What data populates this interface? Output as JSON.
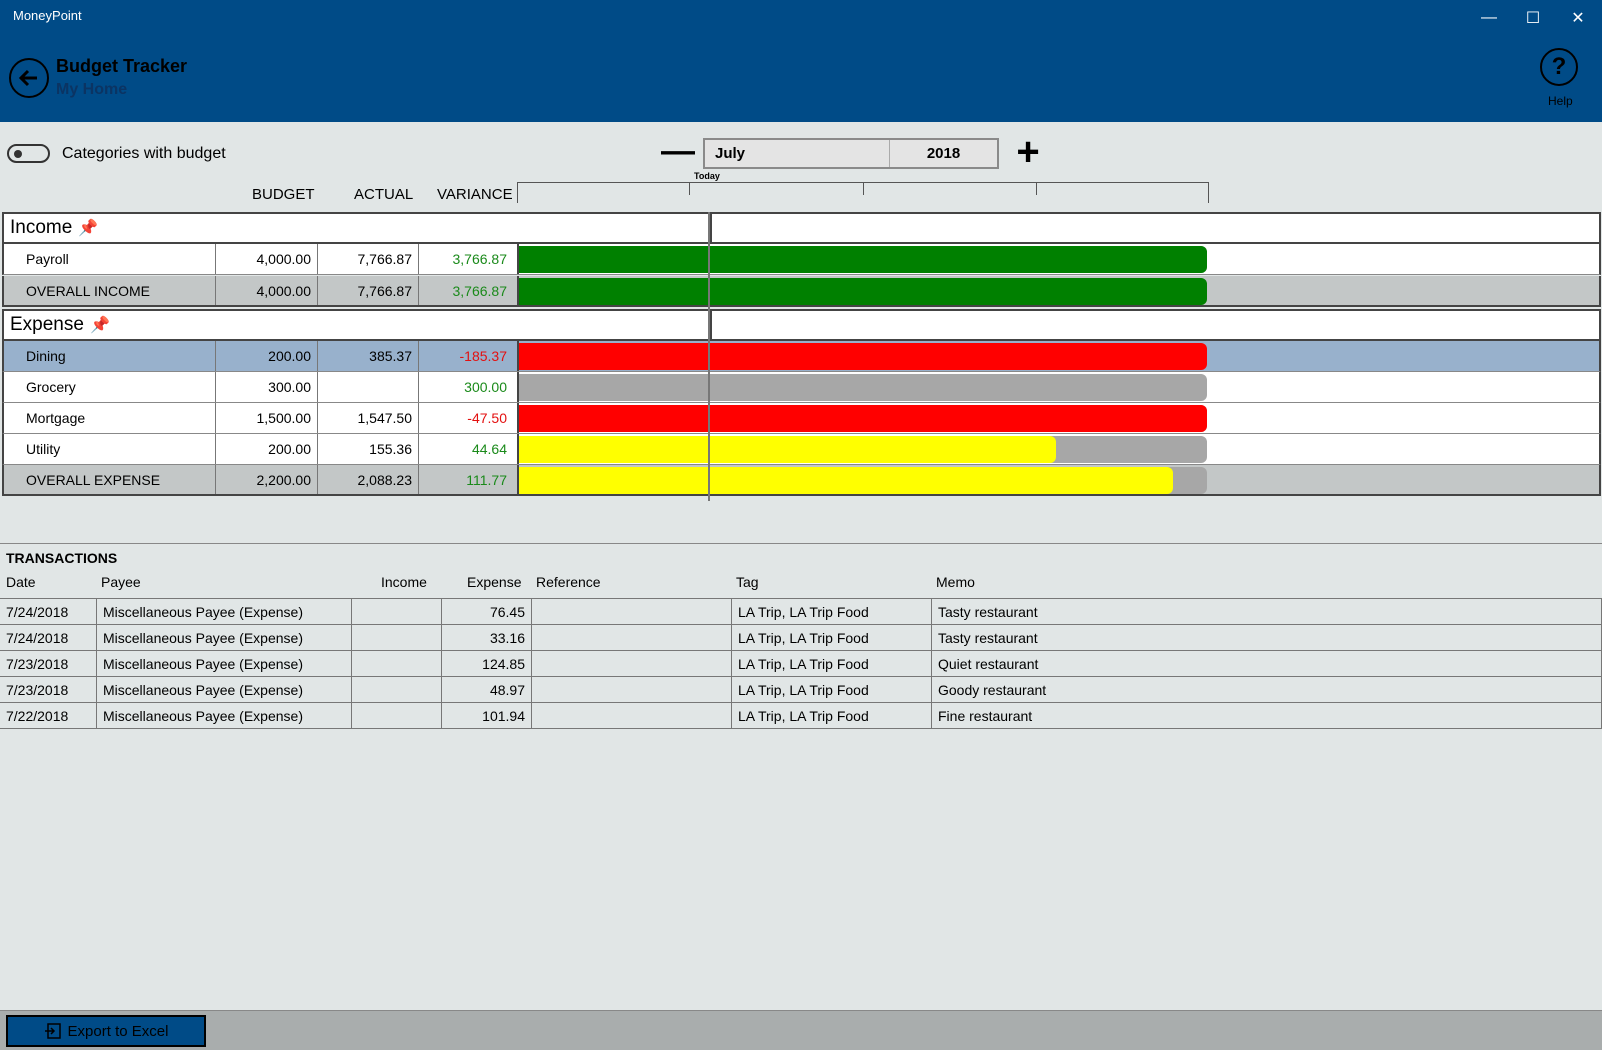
{
  "window": {
    "title": "MoneyPoint"
  },
  "header": {
    "title": "Budget Tracker",
    "subtitle": "My Home",
    "help_label": "Help"
  },
  "controls": {
    "toggle_label": "Categories with budget",
    "toggle_on": false,
    "month": "July",
    "year": "2018"
  },
  "columns": {
    "budget": "BUDGET",
    "actual": "ACTUAL",
    "variance": "VARIANCE",
    "today": "Today"
  },
  "income": {
    "label": "Income",
    "rows": [
      {
        "name": "Payroll",
        "budget": "4,000.00",
        "actual": "7,766.87",
        "variance": "3,766.87",
        "status": "positive",
        "progress": 1.0,
        "bar_color": "#008000"
      }
    ],
    "total": {
      "name": "OVERALL INCOME",
      "budget": "4,000.00",
      "actual": "7,766.87",
      "variance": "3,766.87",
      "status": "positive",
      "progress": 1.0,
      "bar_color": "#008000"
    }
  },
  "expense": {
    "label": "Expense",
    "rows": [
      {
        "name": "Dining",
        "budget": "200.00",
        "actual": "385.37",
        "variance": "-185.37",
        "status": "negative",
        "progress": 1.0,
        "bar_color": "#ff0000",
        "selected": true
      },
      {
        "name": "Grocery",
        "budget": "300.00",
        "actual": "",
        "variance": "300.00",
        "status": "positive",
        "progress": 0.0,
        "bar_color": "#ffff00"
      },
      {
        "name": "Mortgage",
        "budget": "1,500.00",
        "actual": "1,547.50",
        "variance": "-47.50",
        "status": "negative",
        "progress": 1.0,
        "bar_color": "#ff0000"
      },
      {
        "name": "Utility",
        "budget": "200.00",
        "actual": "155.36",
        "variance": "44.64",
        "status": "positive",
        "progress": 0.78,
        "bar_color": "#ffff00"
      }
    ],
    "total": {
      "name": "OVERALL EXPENSE",
      "budget": "2,200.00",
      "actual": "2,088.23",
      "variance": "111.77",
      "status": "positive",
      "progress": 0.95,
      "bar_color": "#ffff00"
    }
  },
  "transactions": {
    "title": "TRANSACTIONS",
    "headers": {
      "date": "Date",
      "payee": "Payee",
      "income": "Income",
      "expense": "Expense",
      "reference": "Reference",
      "tag": "Tag",
      "memo": "Memo"
    },
    "rows": [
      {
        "date": "7/24/2018",
        "payee": "Miscellaneous Payee (Expense)",
        "income": "",
        "expense": "76.45",
        "reference": "",
        "tag": "LA Trip, LA Trip Food",
        "memo": "Tasty restaurant"
      },
      {
        "date": "7/24/2018",
        "payee": "Miscellaneous Payee (Expense)",
        "income": "",
        "expense": "33.16",
        "reference": "",
        "tag": "LA Trip, LA Trip Food",
        "memo": "Tasty restaurant"
      },
      {
        "date": "7/23/2018",
        "payee": "Miscellaneous Payee (Expense)",
        "income": "",
        "expense": "124.85",
        "reference": "",
        "tag": "LA Trip, LA Trip Food",
        "memo": "Quiet restaurant"
      },
      {
        "date": "7/23/2018",
        "payee": "Miscellaneous Payee (Expense)",
        "income": "",
        "expense": "48.97",
        "reference": "",
        "tag": "LA Trip, LA Trip Food",
        "memo": "Goody restaurant"
      },
      {
        "date": "7/22/2018",
        "payee": "Miscellaneous Payee (Expense)",
        "income": "",
        "expense": "101.94",
        "reference": "",
        "tag": "LA Trip, LA Trip Food",
        "memo": "Fine restaurant"
      }
    ]
  },
  "footer": {
    "export_label": "Export to Excel"
  },
  "colors": {
    "header_bg": "#004b87",
    "positive": "#1a8a1a",
    "negative": "#e31010",
    "track": "#a7a7a7",
    "selected_row": "#98b1cc"
  }
}
